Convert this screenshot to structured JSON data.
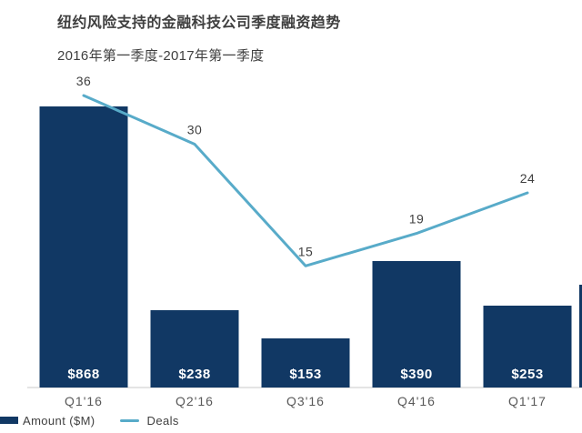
{
  "chart_data": {
    "type": "bar",
    "subtype": "bar-line-combo",
    "title": "纽约风险支持的金融科技公司季度融资趋势",
    "subtitle": "2016年第一季度-2017年第一季度",
    "categories": [
      "Q1'16",
      "Q2'16",
      "Q3'16",
      "Q4'16",
      "Q1'17"
    ],
    "series": [
      {
        "name": "Amount ($M)",
        "type": "bar",
        "values": [
          868,
          238,
          153,
          390,
          253
        ],
        "value_labels": [
          "$868",
          "$238",
          "$153",
          "$390",
          "$253"
        ],
        "color": "#113864"
      },
      {
        "name": "Deals",
        "type": "line",
        "values": [
          36,
          30,
          15,
          19,
          24
        ],
        "color": "#58abc9"
      }
    ],
    "xlabel": "",
    "ylabel": "",
    "grid": false,
    "legend_position": "bottom-left",
    "value_labels_inside_bars": true,
    "point_labels_above_line": true
  },
  "colors": {
    "bar": "#113864",
    "line": "#58abc9",
    "axis_line": "#dcdcdc",
    "title_text": "#3f3f3f",
    "axis_text": "#595959",
    "bar_value_text": "#ffffff",
    "background": "#ffffff"
  }
}
